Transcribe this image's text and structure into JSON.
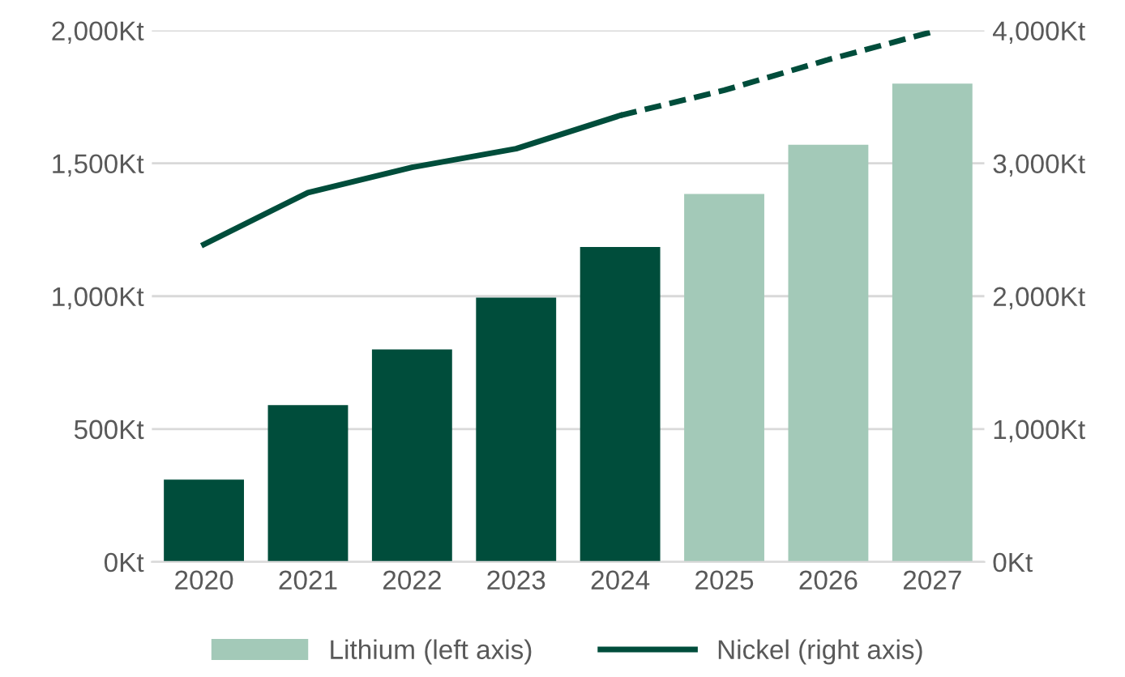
{
  "chart_data": {
    "type": "bar",
    "categories": [
      "2020",
      "2021",
      "2022",
      "2023",
      "2024",
      "2025",
      "2026",
      "2027"
    ],
    "ylim": [
      0,
      2000
    ],
    "yticks": [
      {
        "value": 0,
        "label": "0Kt"
      },
      {
        "value": 500,
        "label": "500Kt"
      },
      {
        "value": 1000,
        "label": "1,000Kt"
      },
      {
        "value": 1500,
        "label": "1,500Kt"
      },
      {
        "value": 2000,
        "label": "2,000Kt"
      }
    ],
    "y2lim": [
      0,
      4000
    ],
    "y2ticks": [
      {
        "value": 0,
        "label": "0Kt"
      },
      {
        "value": 1000,
        "label": "1,000Kt"
      },
      {
        "value": 2000,
        "label": "2,000Kt"
      },
      {
        "value": 3000,
        "label": "3,000Kt"
      },
      {
        "value": 4000,
        "label": "4,000Kt"
      }
    ],
    "grid": "y",
    "legend": "bottom",
    "series": [
      {
        "name": "Lithium (left axis)",
        "color": "#a3c9b8",
        "colors": [
          "#004d3b",
          "#004d3b",
          "#004d3b",
          "#004d3b",
          "#004d3b",
          "#a3c9b8",
          "#a3c9b8",
          "#a3c9b8"
        ],
        "values": [
          310,
          590,
          800,
          995,
          1185,
          1385,
          1570,
          1800
        ]
      },
      {
        "name": "Nickel (right axis)",
        "type": "line",
        "axis": "y2",
        "color": "#004d3b",
        "line_style": "solid",
        "values": [
          2390,
          2780,
          2970,
          3110,
          3360,
          null,
          null,
          null
        ]
      },
      {
        "type": "line",
        "axis": "y2",
        "color": "#004d3b",
        "line_style": "dashed",
        "values": [
          null,
          null,
          null,
          null,
          3360,
          3550,
          3780,
          3990
        ]
      }
    ]
  }
}
